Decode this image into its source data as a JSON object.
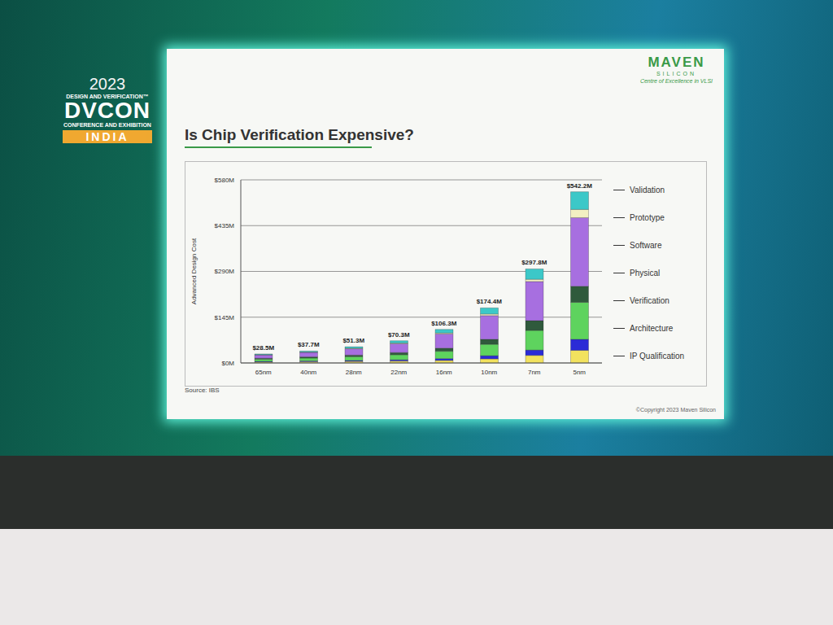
{
  "chart_data": {
    "type": "bar",
    "title": "Is Chip Verification Expensive?",
    "y_label": "Advanced Design Cost",
    "categories": [
      "65nm",
      "40nm",
      "28nm",
      "22nm",
      "16nm",
      "10nm",
      "7nm",
      "5nm"
    ],
    "series": [
      {
        "name": "IP Qualification",
        "color": "#f2e25e",
        "values": [
          3,
          4,
          5,
          6,
          8,
          13,
          24,
          40
        ]
      },
      {
        "name": "Architecture",
        "color": "#2b2bd6",
        "values": [
          2,
          2.5,
          3,
          4,
          6,
          10,
          17,
          35
        ]
      },
      {
        "name": "Verification",
        "color": "#5ed35e",
        "values": [
          7,
          9,
          12,
          16,
          23,
          36,
          62,
          117
        ]
      },
      {
        "name": "Physical",
        "color": "#2f5a3c",
        "values": [
          3,
          4,
          5,
          7,
          10,
          16,
          31,
          51
        ]
      },
      {
        "name": "Software",
        "color": "#a76fe0",
        "values": [
          10.5,
          14,
          20,
          28,
          45,
          75,
          124,
          217.2
        ]
      },
      {
        "name": "Prototype",
        "color": "#f2efc2",
        "values": [
          0.8,
          1,
          1.5,
          2,
          3,
          5,
          7,
          26
        ]
      },
      {
        "name": "Validation",
        "color": "#3cc8c8",
        "values": [
          2.2,
          3.2,
          4.8,
          7.3,
          11.3,
          19.4,
          32.8,
          56
        ]
      }
    ],
    "totals": [
      28.5,
      37.7,
      51.3,
      70.3,
      106.3,
      174.4,
      297.8,
      542.2
    ],
    "total_labels": [
      "$28.5M",
      "$37.7M",
      "$51.3M",
      "$70.3M",
      "$106.3M",
      "$174.4M",
      "$297.8M",
      "$542.2M"
    ],
    "ylim": [
      0,
      580
    ],
    "yticks": [
      {
        "value": 0,
        "label": "$0M"
      },
      {
        "value": 145,
        "label": "$145M"
      },
      {
        "value": 290,
        "label": "$290M"
      },
      {
        "value": 435,
        "label": "$435M"
      },
      {
        "value": 580,
        "label": "$580M"
      }
    ],
    "grid": true,
    "stacked": true,
    "legend": "right",
    "annotations": [
      "Source: IBS"
    ]
  },
  "slide": {
    "logo": [
      "MAVEN",
      "SILICON",
      "Centre of Excellence in VLSI"
    ],
    "copyright": "©Copyright 2023 Maven Silicon",
    "event": {
      "year": "2023",
      "line1": "DESIGN AND VERIFICATION™",
      "name": "DVCON",
      "line2": "CONFERENCE AND EXHIBITION",
      "country": "INDIA"
    }
  }
}
